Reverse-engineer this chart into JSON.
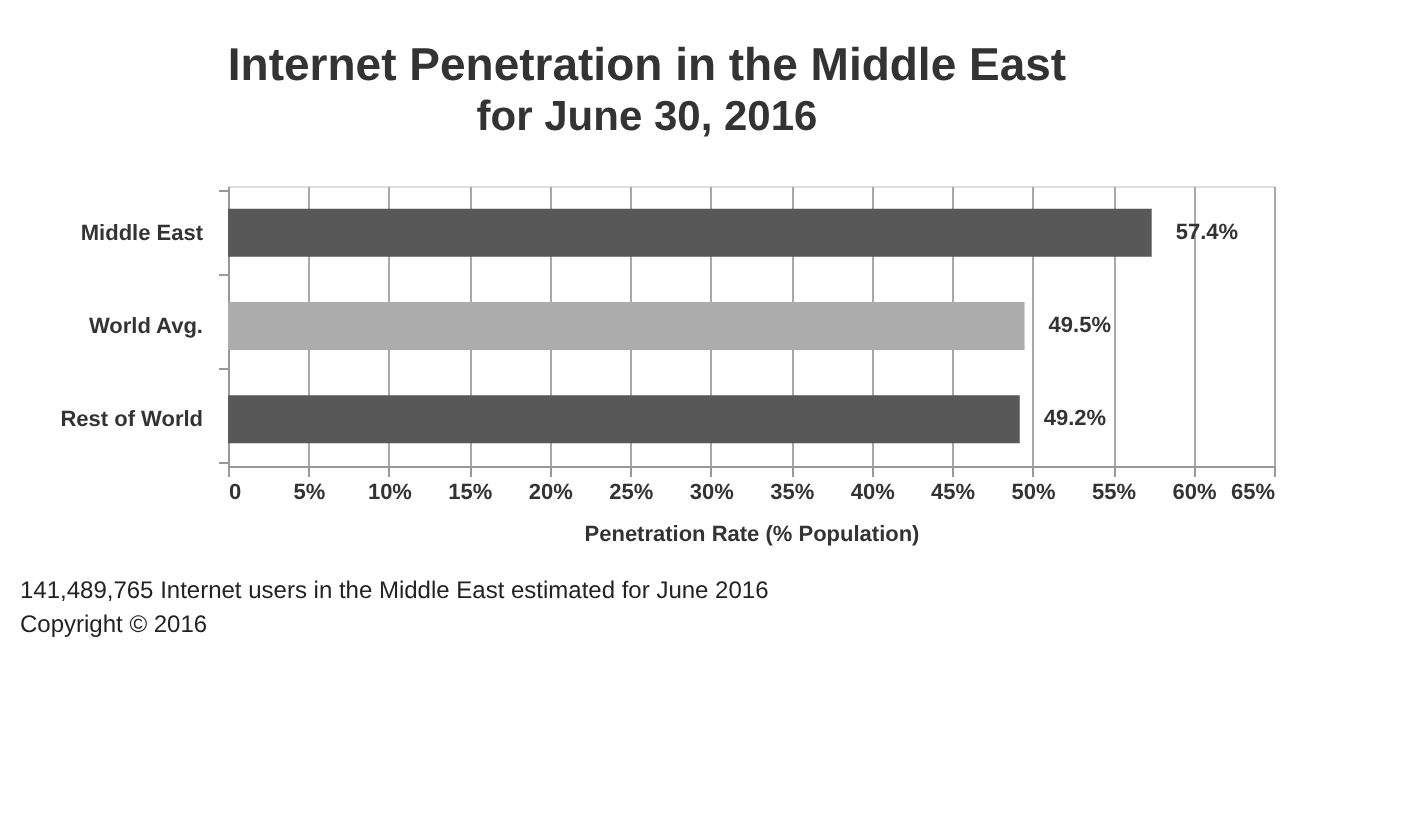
{
  "chart_data": {
    "type": "bar",
    "orientation": "horizontal",
    "title": "Internet Penetration in the Middle East",
    "subtitle": "for June 30, 2016",
    "categories": [
      "Middle East",
      "World Avg.",
      "Rest of World"
    ],
    "values": [
      57.4,
      49.5,
      49.2
    ],
    "colors": [
      "#585858",
      "#acacac",
      "#585858"
    ],
    "value_labels": [
      "57.4%",
      "49.5%",
      "49.2%"
    ],
    "xlabel": "Penetration Rate (% Population)",
    "xlim": [
      0,
      65
    ],
    "xticks": [
      {
        "value": 0,
        "label": "0"
      },
      {
        "value": 5,
        "label": "5%"
      },
      {
        "value": 10,
        "label": "10%"
      },
      {
        "value": 15,
        "label": "15%"
      },
      {
        "value": 20,
        "label": "20%"
      },
      {
        "value": 25,
        "label": "25%"
      },
      {
        "value": 30,
        "label": "30%"
      },
      {
        "value": 35,
        "label": "35%"
      },
      {
        "value": 40,
        "label": "40%"
      },
      {
        "value": 45,
        "label": "45%"
      },
      {
        "value": 50,
        "label": "50%"
      },
      {
        "value": 55,
        "label": "55%"
      },
      {
        "value": 60,
        "label": "60%"
      },
      {
        "value": 65,
        "label": "65%"
      }
    ],
    "grid": "x",
    "annotations": [
      "141,489,765 Internet users in the Middle East estimated for June 2016",
      "Copyright © 2016"
    ]
  }
}
